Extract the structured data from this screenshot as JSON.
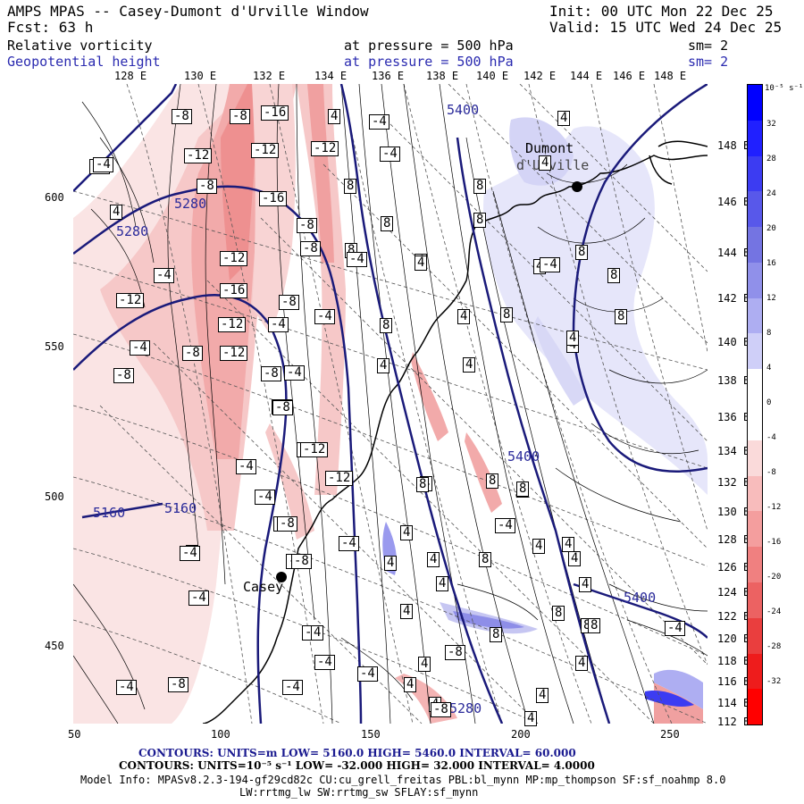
{
  "header": {
    "title": "AMPS MPAS -- Casey-Dumont d'Urville Window",
    "init": "Init: 00 UTC Mon 22 Dec 25",
    "fcst": "Fcst:   63 h",
    "valid": "Valid: 15 UTC Wed 24 Dec 25",
    "field1": {
      "name": "Relative vorticity",
      "level": "at pressure =  500 hPa",
      "sm": "sm= 2"
    },
    "field2": {
      "name": "Geopotential height",
      "level": "at pressure =  500 hPa",
      "sm": "sm= 2"
    }
  },
  "axes": {
    "top_lon": [
      "128 E",
      "130 E",
      "132 E",
      "134 E",
      "136 E",
      "138 E",
      "140 E",
      "142 E",
      "144 E",
      "146 E",
      "148 E"
    ],
    "right_lat": [
      "148 E",
      "146 E",
      "144 E",
      "142 E",
      "140 E",
      "138 E",
      "136 E",
      "134 E",
      "132 E",
      "130 E",
      "128 E",
      "126 E",
      "124 E",
      "122 E",
      "120 E",
      "118 E",
      "116 E",
      "114 E",
      "112 E"
    ],
    "x_ticks": [
      "50",
      "100",
      "150",
      "200",
      "250"
    ],
    "y_ticks": [
      "600",
      "550",
      "500",
      "450"
    ]
  },
  "colorbar": {
    "units": "10⁻⁵ s⁻¹",
    "labels": [
      "32",
      "28",
      "24",
      "20",
      "16",
      "12",
      "8",
      "4",
      "0",
      "-4",
      "-8",
      "-12",
      "-16",
      "-20",
      "-24",
      "-28",
      "-32"
    ],
    "colors": [
      "#0000ff",
      "#2020ff",
      "#3c3cf2",
      "#5858ea",
      "#7474e2",
      "#9090ea",
      "#aeaef2",
      "#cfcff8",
      "#ffffff",
      "#ffffff",
      "#fadada",
      "#f8bcbc",
      "#f49e9e",
      "#f08080",
      "#ec6262",
      "#ea3e3e",
      "#ee1c1c",
      "#ff0000"
    ]
  },
  "map": {
    "stations": [
      "Dumont",
      "d'Urville",
      "Casey"
    ],
    "height_labels": [
      "5400",
      "5280",
      "5280",
      "5160",
      "5160",
      "5400",
      "5400",
      "5280"
    ],
    "vort_labels": [
      {
        "t": "-4"
      },
      {
        "t": "-8"
      },
      {
        "t": "-8"
      },
      {
        "t": "-16"
      },
      {
        "t": "4"
      },
      {
        "t": "-4"
      },
      {
        "t": "4"
      },
      {
        "t": "-4"
      },
      {
        "t": "-12"
      },
      {
        "t": "-12"
      },
      {
        "t": "-12"
      },
      {
        "t": "8"
      },
      {
        "t": "-4"
      },
      {
        "t": "8"
      },
      {
        "t": "-8"
      },
      {
        "t": "-16"
      },
      {
        "t": "8"
      },
      {
        "t": "8"
      },
      {
        "t": "8"
      },
      {
        "t": "4"
      },
      {
        "t": "-8"
      },
      {
        "t": "-4"
      },
      {
        "t": "4"
      },
      {
        "t": "-8"
      },
      {
        "t": "4"
      },
      {
        "t": "8"
      },
      {
        "t": "-4"
      },
      {
        "t": "-12"
      },
      {
        "t": "-8"
      },
      {
        "t": "-4"
      },
      {
        "t": "4"
      },
      {
        "t": "8"
      },
      {
        "t": "4"
      },
      {
        "t": "-12"
      },
      {
        "t": "-16"
      },
      {
        "t": "-8"
      },
      {
        "t": "8"
      },
      {
        "t": "4"
      },
      {
        "t": "-4"
      },
      {
        "t": "-12"
      },
      {
        "t": "-12"
      },
      {
        "t": "-4"
      },
      {
        "t": "8"
      },
      {
        "t": "4"
      },
      {
        "t": "8"
      },
      {
        "t": "4"
      },
      {
        "t": "-4"
      },
      {
        "t": "-8"
      },
      {
        "t": "-8"
      },
      {
        "t": "-12"
      },
      {
        "t": "-4"
      },
      {
        "t": "4"
      },
      {
        "t": "8"
      },
      {
        "t": "8"
      },
      {
        "t": "-8"
      },
      {
        "t": "-8"
      },
      {
        "t": "-4"
      },
      {
        "t": "4"
      },
      {
        "t": "4"
      },
      {
        "t": "4"
      },
      {
        "t": "-8"
      },
      {
        "t": "-8"
      },
      {
        "t": "4"
      },
      {
        "t": "4"
      },
      {
        "t": "8"
      },
      {
        "t": "8"
      },
      {
        "t": "-12"
      },
      {
        "t": "-4"
      },
      {
        "t": "4"
      },
      {
        "t": "4"
      },
      {
        "t": "-4"
      },
      {
        "t": "-12"
      },
      {
        "t": "8"
      },
      {
        "t": "8"
      },
      {
        "t": "-4"
      },
      {
        "t": "-8"
      },
      {
        "t": "8"
      },
      {
        "t": "4"
      },
      {
        "t": "-4"
      },
      {
        "t": "-4"
      },
      {
        "t": "4"
      },
      {
        "t": "4"
      },
      {
        "t": "-4"
      },
      {
        "t": "-8"
      },
      {
        "t": "4"
      },
      {
        "t": "4"
      },
      {
        "t": "-4"
      },
      {
        "t": "-8"
      },
      {
        "t": "4"
      },
      {
        "t": "4"
      },
      {
        "t": "4"
      },
      {
        "t": "-4"
      },
      {
        "t": "-4"
      },
      {
        "t": "4"
      },
      {
        "t": "8"
      },
      {
        "t": "-4"
      },
      {
        "t": "-8"
      },
      {
        "t": "4"
      },
      {
        "t": "4"
      },
      {
        "t": "-4"
      },
      {
        "t": "-8"
      },
      {
        "t": "-8"
      },
      {
        "t": "8"
      },
      {
        "t": "4"
      }
    ]
  },
  "footer": {
    "line1": "CONTOURS: UNITS=m  LOW=  5160.0        HIGH=  5460.0       INTERVAL=   60.000",
    "line2": "CONTOURS:  UNITS=10⁻⁵ s⁻¹  LOW= -32.000       HIGH=  32.000      INTERVAL=   4.0000",
    "line3": "Model Info: MPASv8.2.3-194-gf29cd82c CU:cu_grell_freitas PBL:bl_mynn MP:mp_thompson SF:sf_noahmp 8.0",
    "line4": "LW:rrtmg_lw SW:rrtmg_sw SFLAY:sf_mynn"
  }
}
